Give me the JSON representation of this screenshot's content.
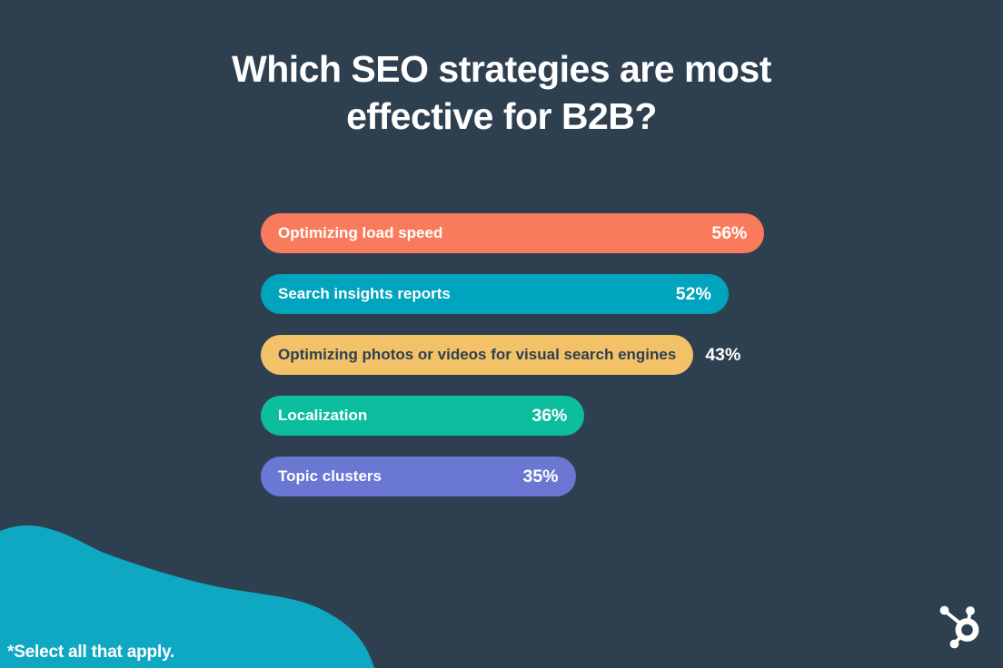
{
  "title": "Which SEO strategies are most effective for B2B?",
  "footnote": "*Select all that apply.",
  "colors": {
    "background": "#2E3F50",
    "title_text": "#FFFFFF",
    "blob": "#0FA8C3",
    "logo": "#FFFFFF",
    "outside_value_text": "#FFFFFF"
  },
  "branding": {
    "logo_icon": "hubspot-sprocket-icon"
  },
  "chart_data": {
    "type": "bar",
    "orientation": "horizontal",
    "title": "Which SEO strategies are most effective for B2B?",
    "unit": "%",
    "xlim": [
      0,
      60
    ],
    "grid": false,
    "axes_visible": false,
    "categories": [
      "Optimizing load speed",
      "Search insights reports",
      "Optimizing photos or videos for visual search engines",
      "Localization",
      "Topic clusters"
    ],
    "values": [
      56,
      52,
      43,
      36,
      35
    ],
    "bars": [
      {
        "label": "Optimizing load speed",
        "value": 56,
        "display": "56%",
        "color": "#F97B5B",
        "text_color": "#FFFFFF",
        "value_position": "inside"
      },
      {
        "label": "Search insights reports",
        "value": 52,
        "display": "52%",
        "color": "#00A4BD",
        "text_color": "#FFFFFF",
        "value_position": "inside"
      },
      {
        "label": "Optimizing photos or videos for visual search engines",
        "value": 43,
        "display": "43%",
        "color": "#F2C168",
        "text_color": "#2E3F50",
        "value_position": "outside"
      },
      {
        "label": "Localization",
        "value": 36,
        "display": "36%",
        "color": "#0CBE9D",
        "text_color": "#FFFFFF",
        "value_position": "inside"
      },
      {
        "label": "Topic clusters",
        "value": 35,
        "display": "35%",
        "color": "#6A78D4",
        "text_color": "#FFFFFF",
        "value_position": "inside"
      }
    ],
    "footnote": "*Select all that apply."
  }
}
